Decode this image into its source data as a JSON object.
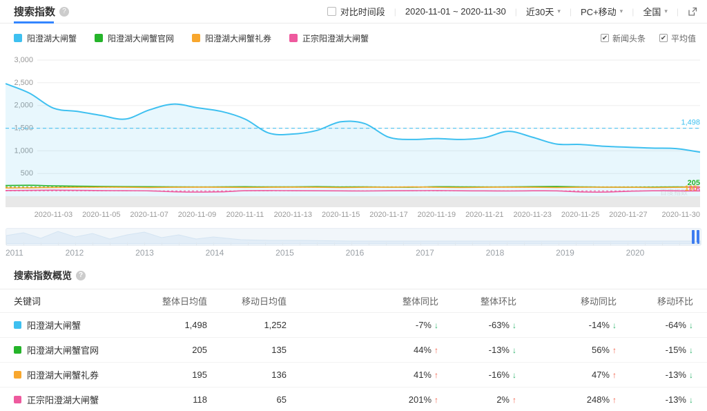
{
  "header": {
    "title": "搜索指数",
    "compare_label": "对比时间段",
    "date_range": "2020-11-01 ~ 2020-11-30",
    "range_select": "近30天",
    "platform_select": "PC+移动",
    "region_select": "全国"
  },
  "legend": {
    "items": [
      {
        "label": "阳澄湖大闸蟹",
        "color": "#3ec0f0"
      },
      {
        "label": "阳澄湖大闸蟹官网",
        "color": "#25b42a"
      },
      {
        "label": "阳澄湖大闸蟹礼券",
        "color": "#f8a72e"
      },
      {
        "label": "正宗阳澄湖大闸蟹",
        "color": "#ee5a9e"
      }
    ],
    "toggles": [
      {
        "label": "新闻头条",
        "checked": true
      },
      {
        "label": "平均值",
        "checked": true
      }
    ]
  },
  "chart_data": {
    "type": "line",
    "title": "搜索指数",
    "x": [
      "2020-11-01",
      "2020-11-02",
      "2020-11-03",
      "2020-11-04",
      "2020-11-05",
      "2020-11-06",
      "2020-11-07",
      "2020-11-08",
      "2020-11-09",
      "2020-11-10",
      "2020-11-11",
      "2020-11-12",
      "2020-11-13",
      "2020-11-14",
      "2020-11-15",
      "2020-11-16",
      "2020-11-17",
      "2020-11-18",
      "2020-11-19",
      "2020-11-20",
      "2020-11-21",
      "2020-11-22",
      "2020-11-23",
      "2020-11-24",
      "2020-11-25",
      "2020-11-26",
      "2020-11-27",
      "2020-11-28",
      "2020-11-29",
      "2020-11-30"
    ],
    "x_tick_labels": [
      "2020-11-03",
      "2020-11-05",
      "2020-11-07",
      "2020-11-09",
      "2020-11-11",
      "2020-11-13",
      "2020-11-15",
      "2020-11-17",
      "2020-11-19",
      "2020-11-21",
      "2020-11-23",
      "2020-11-25",
      "2020-11-27",
      "2020-11-30"
    ],
    "ylim": [
      0,
      3000
    ],
    "yticks": [
      500,
      1000,
      1500,
      2000,
      2500,
      3000
    ],
    "grid": true,
    "legend_position": "top",
    "show_average_lines": true,
    "series": [
      {
        "name": "阳澄湖大闸蟹",
        "color": "#3ec0f0",
        "average": 1498,
        "average_label": "1,498",
        "values": [
          2480,
          2270,
          1940,
          1870,
          1780,
          1700,
          1900,
          2030,
          1950,
          1870,
          1700,
          1390,
          1370,
          1450,
          1640,
          1600,
          1300,
          1250,
          1270,
          1250,
          1290,
          1430,
          1300,
          1150,
          1140,
          1100,
          1080,
          1060,
          1050,
          970
        ]
      },
      {
        "name": "阳澄湖大闸蟹官网",
        "color": "#25b42a",
        "average": 205,
        "average_label": "205",
        "values": [
          235,
          240,
          228,
          220,
          215,
          210,
          208,
          205,
          202,
          205,
          208,
          204,
          206,
          210,
          203,
          205,
          200,
          198,
          208,
          206,
          202,
          205,
          210,
          214,
          206,
          200,
          196,
          200,
          205,
          200
        ]
      },
      {
        "name": "阳澄湖大闸蟹礼券",
        "color": "#f8a72e",
        "average": 195,
        "average_label": "195",
        "values": [
          180,
          185,
          192,
          196,
          200,
          196,
          192,
          196,
          200,
          197,
          193,
          196,
          200,
          196,
          192,
          196,
          200,
          204,
          196,
          192,
          196,
          200,
          196,
          192,
          196,
          199,
          196,
          192,
          195,
          198
        ]
      },
      {
        "name": "正宗阳澄湖大闸蟹",
        "color": "#ee5a9e",
        "average": 118,
        "average_label": "118",
        "values": [
          125,
          128,
          132,
          128,
          124,
          120,
          118,
          98,
          90,
          96,
          120,
          124,
          121,
          119,
          117,
          114,
          119,
          121,
          124,
          119,
          117,
          114,
          119,
          117,
          94,
          90,
          108,
          119,
          117,
          114
        ]
      }
    ]
  },
  "slider": {
    "years": [
      "2011",
      "2012",
      "2013",
      "2014",
      "2015",
      "2016",
      "2017",
      "2018",
      "2019",
      "2020"
    ]
  },
  "overview": {
    "title": "搜索指数概览",
    "columns": [
      "关键词",
      "整体日均值",
      "移动日均值",
      "整体同比",
      "整体环比",
      "移动同比",
      "移动环比"
    ],
    "rows": [
      {
        "keyword": "阳澄湖大闸蟹",
        "color": "#3ec0f0",
        "overall_avg": "1,498",
        "mobile_avg": "1,252",
        "overall_yoy": "-7%",
        "overall_yoy_dir": "down",
        "overall_mom": "-63%",
        "overall_mom_dir": "down",
        "mobile_yoy": "-14%",
        "mobile_yoy_dir": "down",
        "mobile_mom": "-64%",
        "mobile_mom_dir": "down"
      },
      {
        "keyword": "阳澄湖大闸蟹官网",
        "color": "#25b42a",
        "overall_avg": "205",
        "mobile_avg": "135",
        "overall_yoy": "44%",
        "overall_yoy_dir": "up",
        "overall_mom": "-13%",
        "overall_mom_dir": "down",
        "mobile_yoy": "56%",
        "mobile_yoy_dir": "up",
        "mobile_mom": "-15%",
        "mobile_mom_dir": "down"
      },
      {
        "keyword": "阳澄湖大闸蟹礼券",
        "color": "#f8a72e",
        "overall_avg": "195",
        "mobile_avg": "136",
        "overall_yoy": "41%",
        "overall_yoy_dir": "up",
        "overall_mom": "-16%",
        "overall_mom_dir": "down",
        "mobile_yoy": "47%",
        "mobile_yoy_dir": "up",
        "mobile_mom": "-13%",
        "mobile_mom_dir": "down"
      },
      {
        "keyword": "正宗阳澄湖大闸蟹",
        "color": "#ee5a9e",
        "overall_avg": "118",
        "mobile_avg": "65",
        "overall_yoy": "201%",
        "overall_yoy_dir": "up",
        "overall_mom": "2%",
        "overall_mom_dir": "up",
        "mobile_yoy": "248%",
        "mobile_yoy_dir": "up",
        "mobile_mom": "-13%",
        "mobile_mom_dir": "down"
      }
    ]
  },
  "watermark": "百度指数",
  "colors": {
    "accent": "#3385ff",
    "slider_handle": "#3f7df0",
    "up": "#f25b43",
    "down": "#2cb26a",
    "axis_text": "#999999",
    "grid": "#ededed",
    "news_band": "#e8e8e8",
    "average_line_blue": "#5bc5ef"
  }
}
